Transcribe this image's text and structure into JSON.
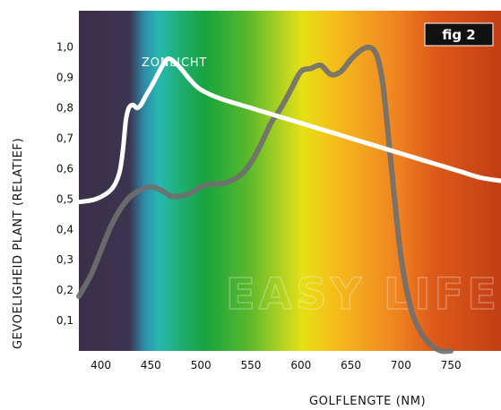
{
  "figure_label": "fig 2",
  "watermark": "EASY LIFE",
  "chart_data": {
    "type": "line",
    "ylabel": "GEVOELIGHEID PLANT (RELATIEF)",
    "xlabel": "GOLFLENGTE (NM)",
    "xlim": [
      378,
      800
    ],
    "ylim": [
      0,
      1.12
    ],
    "x_ticks": [
      "400",
      "450",
      "500",
      "550",
      "600",
      "650",
      "700",
      "750"
    ],
    "x_tick_values": [
      400,
      450,
      500,
      550,
      600,
      650,
      700,
      750
    ],
    "y_ticks": [
      "0,1",
      "0,2",
      "0,3",
      "0,4",
      "0,5",
      "0,6",
      "0,7",
      "0,8",
      "0,9",
      "1,0"
    ],
    "y_tick_values": [
      0.1,
      0.2,
      0.3,
      0.4,
      0.5,
      0.6,
      0.7,
      0.8,
      0.9,
      1.0
    ],
    "series": [
      {
        "name": "ZONLICHT",
        "color": "#ffffff",
        "x": [
          378,
          395,
          410,
          418,
          422,
          425,
          428,
          432,
          436,
          440,
          445,
          452,
          460,
          466,
          470,
          474,
          480,
          490,
          500,
          520,
          540,
          560,
          580,
          600,
          620,
          640,
          660,
          680,
          700,
          720,
          740,
          760,
          780,
          800
        ],
        "y": [
          0.49,
          0.5,
          0.53,
          0.58,
          0.66,
          0.76,
          0.8,
          0.81,
          0.8,
          0.81,
          0.84,
          0.88,
          0.93,
          0.96,
          0.96,
          0.95,
          0.93,
          0.89,
          0.86,
          0.83,
          0.81,
          0.79,
          0.77,
          0.75,
          0.73,
          0.71,
          0.69,
          0.67,
          0.65,
          0.63,
          0.61,
          0.59,
          0.57,
          0.56
        ]
      },
      {
        "name": "",
        "color": "#6f6f6f",
        "x": [
          378,
          390,
          400,
          410,
          420,
          430,
          440,
          450,
          460,
          470,
          480,
          490,
          500,
          510,
          520,
          530,
          540,
          550,
          560,
          570,
          580,
          590,
          600,
          610,
          620,
          630,
          640,
          650,
          660,
          667,
          673,
          678,
          683,
          690,
          700,
          710,
          720,
          730,
          740,
          750
        ],
        "y": [
          0.18,
          0.25,
          0.33,
          0.41,
          0.47,
          0.51,
          0.53,
          0.54,
          0.53,
          0.51,
          0.51,
          0.52,
          0.54,
          0.55,
          0.55,
          0.56,
          0.58,
          0.62,
          0.68,
          0.75,
          0.8,
          0.86,
          0.92,
          0.93,
          0.94,
          0.91,
          0.92,
          0.96,
          0.99,
          1.0,
          0.99,
          0.95,
          0.85,
          0.62,
          0.31,
          0.14,
          0.06,
          0.02,
          0.0,
          0.0
        ]
      }
    ]
  }
}
